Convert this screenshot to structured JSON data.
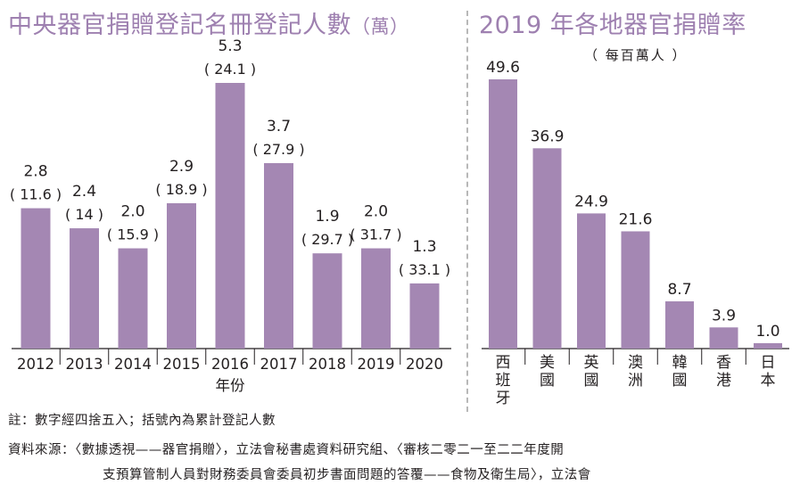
{
  "left_chart": {
    "title": "中央器官捐贈登記名冊登記人數",
    "title_unit": "（萬）"
  },
  "right_chart": {
    "title": "2019 年各地器官捐贈率",
    "subtitle": "（ 每百萬人 ）"
  },
  "footer": {
    "note": "註：數字經四捨五入；括號內為累計登記人數",
    "source_line1": "資料來源：〈數據透視——器官捐贈〉，立法會秘書處資料研究組、〈審核二零二一至二二年度開",
    "source_line2": "支預算管制人員對財務委員會委員初步書面問題的答覆——食物及衛生局〉，立法會"
  },
  "colors": {
    "bar": "#a487b3",
    "title": "#9e80b0",
    "text": "#231f20",
    "axis": "#231f20",
    "divider": "#b8b8b8"
  },
  "chart_data": [
    {
      "type": "bar",
      "title": "中央器官捐贈登記名冊登記人數（萬）",
      "xlabel": "年份",
      "ylabel": "",
      "categories": [
        "2012",
        "2013",
        "2014",
        "2015",
        "2016",
        "2017",
        "2018",
        "2019",
        "2020"
      ],
      "values": [
        2.8,
        2.4,
        2.0,
        2.9,
        5.3,
        3.7,
        1.9,
        2.0,
        1.3
      ],
      "value_labels": [
        "2.8",
        "2.4",
        "2.0",
        "2.9",
        "5.3",
        "3.7",
        "1.9",
        "2.0",
        "1.3"
      ],
      "cumulative_labels": [
        "( 11.6 )",
        "( 14 )",
        "( 15.9 )",
        "( 18.9 )",
        "( 24.1 )",
        "( 27.9 )",
        "( 29.7 )",
        "( 31.7 )",
        "( 33.1 )"
      ],
      "ylim": [
        0,
        5.3
      ],
      "grid": false,
      "legend": "none"
    },
    {
      "type": "bar",
      "title": "2019 年各地器官捐贈率（每百萬人）",
      "xlabel": "",
      "ylabel": "",
      "categories": [
        "西班牙",
        "美國",
        "英國",
        "澳洲",
        "韓國",
        "香港",
        "日本"
      ],
      "values": [
        49.6,
        36.9,
        24.9,
        21.6,
        8.7,
        3.9,
        1.0
      ],
      "value_labels": [
        "49.6",
        "36.9",
        "24.9",
        "21.6",
        "8.7",
        "3.9",
        "1.0"
      ],
      "ylim": [
        0,
        49.6
      ],
      "grid": false,
      "legend": "none"
    }
  ]
}
